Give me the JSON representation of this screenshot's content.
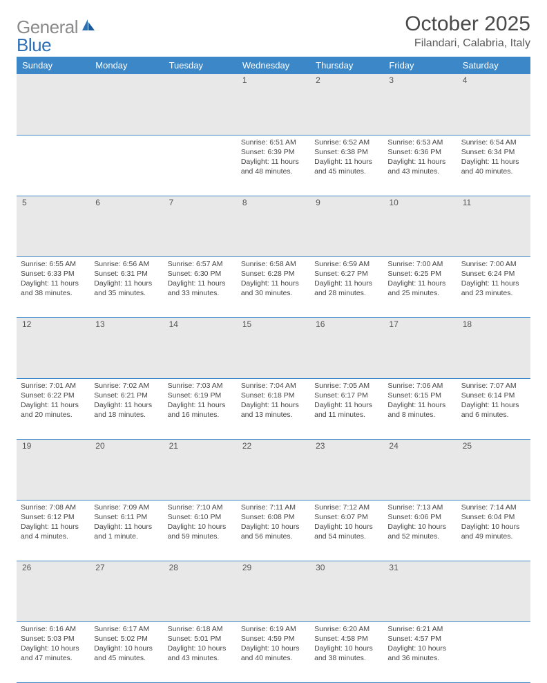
{
  "logo": {
    "text1": "General",
    "text2": "Blue"
  },
  "title": "October 2025",
  "location": "Filandari, Calabria, Italy",
  "colors": {
    "header_bg": "#3b87c8",
    "header_text": "#ffffff",
    "daynum_bg": "#e8e8e8",
    "border": "#3b87c8",
    "logo_gray": "#8a8a8a",
    "logo_blue": "#2d6fb5"
  },
  "day_headers": [
    "Sunday",
    "Monday",
    "Tuesday",
    "Wednesday",
    "Thursday",
    "Friday",
    "Saturday"
  ],
  "weeks": [
    [
      {
        "num": "",
        "sunrise": "",
        "sunset": "",
        "daylight": ""
      },
      {
        "num": "",
        "sunrise": "",
        "sunset": "",
        "daylight": ""
      },
      {
        "num": "",
        "sunrise": "",
        "sunset": "",
        "daylight": ""
      },
      {
        "num": "1",
        "sunrise": "Sunrise: 6:51 AM",
        "sunset": "Sunset: 6:39 PM",
        "daylight": "Daylight: 11 hours and 48 minutes."
      },
      {
        "num": "2",
        "sunrise": "Sunrise: 6:52 AM",
        "sunset": "Sunset: 6:38 PM",
        "daylight": "Daylight: 11 hours and 45 minutes."
      },
      {
        "num": "3",
        "sunrise": "Sunrise: 6:53 AM",
        "sunset": "Sunset: 6:36 PM",
        "daylight": "Daylight: 11 hours and 43 minutes."
      },
      {
        "num": "4",
        "sunrise": "Sunrise: 6:54 AM",
        "sunset": "Sunset: 6:34 PM",
        "daylight": "Daylight: 11 hours and 40 minutes."
      }
    ],
    [
      {
        "num": "5",
        "sunrise": "Sunrise: 6:55 AM",
        "sunset": "Sunset: 6:33 PM",
        "daylight": "Daylight: 11 hours and 38 minutes."
      },
      {
        "num": "6",
        "sunrise": "Sunrise: 6:56 AM",
        "sunset": "Sunset: 6:31 PM",
        "daylight": "Daylight: 11 hours and 35 minutes."
      },
      {
        "num": "7",
        "sunrise": "Sunrise: 6:57 AM",
        "sunset": "Sunset: 6:30 PM",
        "daylight": "Daylight: 11 hours and 33 minutes."
      },
      {
        "num": "8",
        "sunrise": "Sunrise: 6:58 AM",
        "sunset": "Sunset: 6:28 PM",
        "daylight": "Daylight: 11 hours and 30 minutes."
      },
      {
        "num": "9",
        "sunrise": "Sunrise: 6:59 AM",
        "sunset": "Sunset: 6:27 PM",
        "daylight": "Daylight: 11 hours and 28 minutes."
      },
      {
        "num": "10",
        "sunrise": "Sunrise: 7:00 AM",
        "sunset": "Sunset: 6:25 PM",
        "daylight": "Daylight: 11 hours and 25 minutes."
      },
      {
        "num": "11",
        "sunrise": "Sunrise: 7:00 AM",
        "sunset": "Sunset: 6:24 PM",
        "daylight": "Daylight: 11 hours and 23 minutes."
      }
    ],
    [
      {
        "num": "12",
        "sunrise": "Sunrise: 7:01 AM",
        "sunset": "Sunset: 6:22 PM",
        "daylight": "Daylight: 11 hours and 20 minutes."
      },
      {
        "num": "13",
        "sunrise": "Sunrise: 7:02 AM",
        "sunset": "Sunset: 6:21 PM",
        "daylight": "Daylight: 11 hours and 18 minutes."
      },
      {
        "num": "14",
        "sunrise": "Sunrise: 7:03 AM",
        "sunset": "Sunset: 6:19 PM",
        "daylight": "Daylight: 11 hours and 16 minutes."
      },
      {
        "num": "15",
        "sunrise": "Sunrise: 7:04 AM",
        "sunset": "Sunset: 6:18 PM",
        "daylight": "Daylight: 11 hours and 13 minutes."
      },
      {
        "num": "16",
        "sunrise": "Sunrise: 7:05 AM",
        "sunset": "Sunset: 6:17 PM",
        "daylight": "Daylight: 11 hours and 11 minutes."
      },
      {
        "num": "17",
        "sunrise": "Sunrise: 7:06 AM",
        "sunset": "Sunset: 6:15 PM",
        "daylight": "Daylight: 11 hours and 8 minutes."
      },
      {
        "num": "18",
        "sunrise": "Sunrise: 7:07 AM",
        "sunset": "Sunset: 6:14 PM",
        "daylight": "Daylight: 11 hours and 6 minutes."
      }
    ],
    [
      {
        "num": "19",
        "sunrise": "Sunrise: 7:08 AM",
        "sunset": "Sunset: 6:12 PM",
        "daylight": "Daylight: 11 hours and 4 minutes."
      },
      {
        "num": "20",
        "sunrise": "Sunrise: 7:09 AM",
        "sunset": "Sunset: 6:11 PM",
        "daylight": "Daylight: 11 hours and 1 minute."
      },
      {
        "num": "21",
        "sunrise": "Sunrise: 7:10 AM",
        "sunset": "Sunset: 6:10 PM",
        "daylight": "Daylight: 10 hours and 59 minutes."
      },
      {
        "num": "22",
        "sunrise": "Sunrise: 7:11 AM",
        "sunset": "Sunset: 6:08 PM",
        "daylight": "Daylight: 10 hours and 56 minutes."
      },
      {
        "num": "23",
        "sunrise": "Sunrise: 7:12 AM",
        "sunset": "Sunset: 6:07 PM",
        "daylight": "Daylight: 10 hours and 54 minutes."
      },
      {
        "num": "24",
        "sunrise": "Sunrise: 7:13 AM",
        "sunset": "Sunset: 6:06 PM",
        "daylight": "Daylight: 10 hours and 52 minutes."
      },
      {
        "num": "25",
        "sunrise": "Sunrise: 7:14 AM",
        "sunset": "Sunset: 6:04 PM",
        "daylight": "Daylight: 10 hours and 49 minutes."
      }
    ],
    [
      {
        "num": "26",
        "sunrise": "Sunrise: 6:16 AM",
        "sunset": "Sunset: 5:03 PM",
        "daylight": "Daylight: 10 hours and 47 minutes."
      },
      {
        "num": "27",
        "sunrise": "Sunrise: 6:17 AM",
        "sunset": "Sunset: 5:02 PM",
        "daylight": "Daylight: 10 hours and 45 minutes."
      },
      {
        "num": "28",
        "sunrise": "Sunrise: 6:18 AM",
        "sunset": "Sunset: 5:01 PM",
        "daylight": "Daylight: 10 hours and 43 minutes."
      },
      {
        "num": "29",
        "sunrise": "Sunrise: 6:19 AM",
        "sunset": "Sunset: 4:59 PM",
        "daylight": "Daylight: 10 hours and 40 minutes."
      },
      {
        "num": "30",
        "sunrise": "Sunrise: 6:20 AM",
        "sunset": "Sunset: 4:58 PM",
        "daylight": "Daylight: 10 hours and 38 minutes."
      },
      {
        "num": "31",
        "sunrise": "Sunrise: 6:21 AM",
        "sunset": "Sunset: 4:57 PM",
        "daylight": "Daylight: 10 hours and 36 minutes."
      },
      {
        "num": "",
        "sunrise": "",
        "sunset": "",
        "daylight": ""
      }
    ]
  ]
}
